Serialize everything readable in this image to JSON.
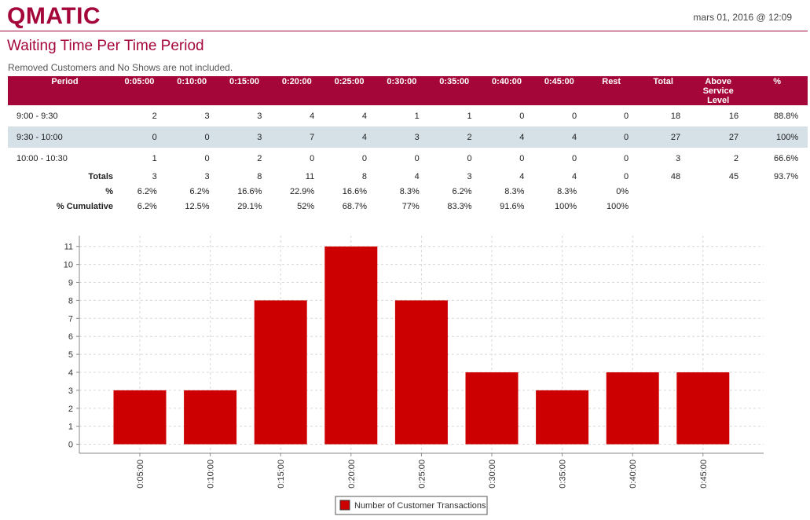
{
  "header": {
    "logo": "QMATIC",
    "timestamp": "mars 01, 2016 @ 12:09"
  },
  "report": {
    "title": "Waiting Time Per Time Period",
    "note": "Removed Customers and No Shows are not included."
  },
  "table": {
    "columns": [
      "Period",
      "0:05:00",
      "0:10:00",
      "0:15:00",
      "0:20:00",
      "0:25:00",
      "0:30:00",
      "0:35:00",
      "0:40:00",
      "0:45:00",
      "Rest",
      "Total",
      "Above\nService Level",
      "%"
    ],
    "rows": [
      [
        "9:00 - 9:30",
        "2",
        "3",
        "3",
        "4",
        "4",
        "1",
        "1",
        "0",
        "0",
        "0",
        "18",
        "16",
        "88.8%"
      ],
      [
        "9:30 - 10:00",
        "0",
        "0",
        "3",
        "7",
        "4",
        "3",
        "2",
        "4",
        "4",
        "0",
        "27",
        "27",
        "100%"
      ],
      [
        "10:00 - 10:30",
        "1",
        "0",
        "2",
        "0",
        "0",
        "0",
        "0",
        "0",
        "0",
        "0",
        "3",
        "2",
        "66.6%"
      ]
    ],
    "totals": [
      [
        "Totals",
        "3",
        "3",
        "8",
        "11",
        "8",
        "4",
        "3",
        "4",
        "4",
        "0",
        "48",
        "45",
        "93.7%"
      ],
      [
        "%",
        "6.2%",
        "6.2%",
        "16.6%",
        "22.9%",
        "16.6%",
        "8.3%",
        "6.2%",
        "8.3%",
        "8.3%",
        "0%"
      ],
      [
        "% Cumulative",
        "6.2%",
        "12.5%",
        "29.1%",
        "52%",
        "68.7%",
        "77%",
        "83.3%",
        "91.6%",
        "100%",
        "100%"
      ]
    ]
  },
  "chart_data": {
    "type": "bar",
    "categories": [
      "0:05:00",
      "0:10:00",
      "0:15:00",
      "0:20:00",
      "0:25:00",
      "0:30:00",
      "0:35:00",
      "0:40:00",
      "0:45:00"
    ],
    "series": [
      {
        "name": "Number of Customer Transactions",
        "color": "#cc0000",
        "values": [
          3,
          3,
          8,
          11,
          8,
          4,
          3,
          4,
          4
        ]
      }
    ],
    "ylim": [
      -0.5,
      11.6
    ],
    "yticks": [
      0,
      1,
      2,
      3,
      4,
      5,
      6,
      7,
      8,
      9,
      10,
      11
    ],
    "grid": true
  }
}
